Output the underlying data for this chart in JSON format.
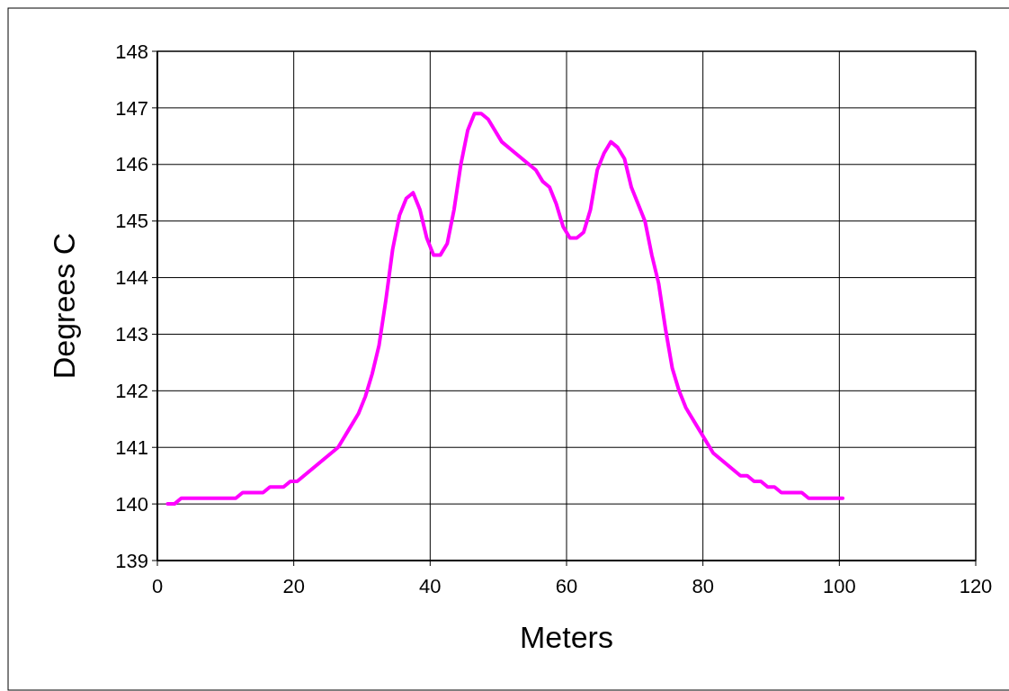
{
  "chart_data": {
    "type": "line",
    "xlabel": "Meters",
    "ylabel": "Degrees C",
    "series": [
      {
        "color": "#ff00ff",
        "x": [
          1.5,
          2.5,
          3.5,
          11.5,
          12.5,
          15.5,
          16.5,
          18.5,
          19.5,
          20.5,
          26.5,
          28,
          29.5,
          30.5,
          31.5,
          32.5,
          33.5,
          34.5,
          35.5,
          36.5,
          37.5,
          38.5,
          39.5,
          40.5,
          41.5,
          42.5,
          43.5,
          44.5,
          45.5,
          46.5,
          47.5,
          48.5,
          50.5,
          52.5,
          55.5,
          56.5,
          57.5,
          58.5,
          59.5,
          60.5,
          61.5,
          62.5,
          63.5,
          64.5,
          65.5,
          66.5,
          67.5,
          68.5,
          69.5,
          71.5,
          72.5,
          73.5,
          74.5,
          75.5,
          76.5,
          77.5,
          79.5,
          81.5,
          85.5,
          86.5,
          87.5,
          88.5,
          89.5,
          90.5,
          91.5,
          94.5,
          95.5,
          100.5
        ],
        "values": [
          140.0,
          140.0,
          140.1,
          140.1,
          140.2,
          140.2,
          140.3,
          140.3,
          140.4,
          140.4,
          141.0,
          141.3,
          141.6,
          141.9,
          142.3,
          142.8,
          143.6,
          144.5,
          145.1,
          145.4,
          145.5,
          145.2,
          144.7,
          144.4,
          144.4,
          144.6,
          145.2,
          146.0,
          146.6,
          146.9,
          146.9,
          146.8,
          146.4,
          146.2,
          145.9,
          145.7,
          145.6,
          145.3,
          144.9,
          144.7,
          144.7,
          144.8,
          145.2,
          145.9,
          146.2,
          146.4,
          146.3,
          146.1,
          145.6,
          145.0,
          144.4,
          143.9,
          143.1,
          142.4,
          142.0,
          141.7,
          141.3,
          140.9,
          140.5,
          140.5,
          140.4,
          140.4,
          140.3,
          140.3,
          140.2,
          140.2,
          140.1,
          140.1
        ]
      }
    ],
    "xlim": [
      0,
      120
    ],
    "xticks": [
      0,
      20,
      40,
      60,
      80,
      100,
      120
    ],
    "ylim": [
      139,
      148
    ],
    "yticks": [
      139,
      140,
      141,
      142,
      143,
      144,
      145,
      146,
      147,
      148
    ],
    "grid": true,
    "line_style": "solid",
    "marker": "none"
  }
}
